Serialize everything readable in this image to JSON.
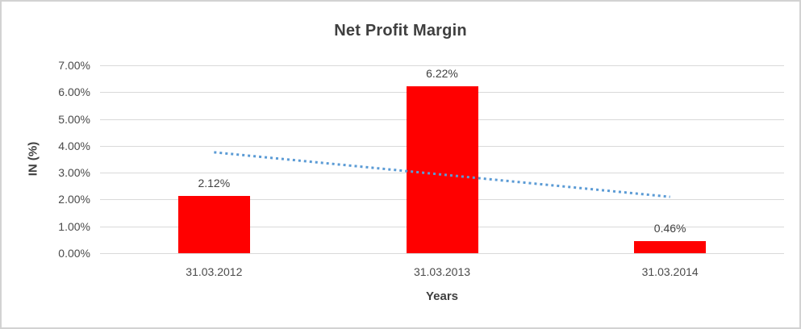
{
  "chart_data": {
    "type": "bar",
    "title": "Net Profit Margin",
    "xlabel": "Years",
    "ylabel": "IN (%)",
    "categories": [
      "31.03.2012",
      "31.03.2013",
      "31.03.2014"
    ],
    "values": [
      2.12,
      6.22,
      0.46
    ],
    "data_labels": [
      "2.12%",
      "6.22%",
      "0.46%"
    ],
    "ylim": [
      0,
      7
    ],
    "ytick_step": 1,
    "ytick_labels": [
      "0.00%",
      "1.00%",
      "2.00%",
      "3.00%",
      "4.00%",
      "5.00%",
      "6.00%",
      "7.00%"
    ],
    "grid": true,
    "legend": "none",
    "bar_color": "#ff0000",
    "trendline": {
      "type": "linear",
      "style": "dotted",
      "color": "#5b9bd5",
      "start_value": 3.76,
      "end_value": 2.1
    }
  }
}
